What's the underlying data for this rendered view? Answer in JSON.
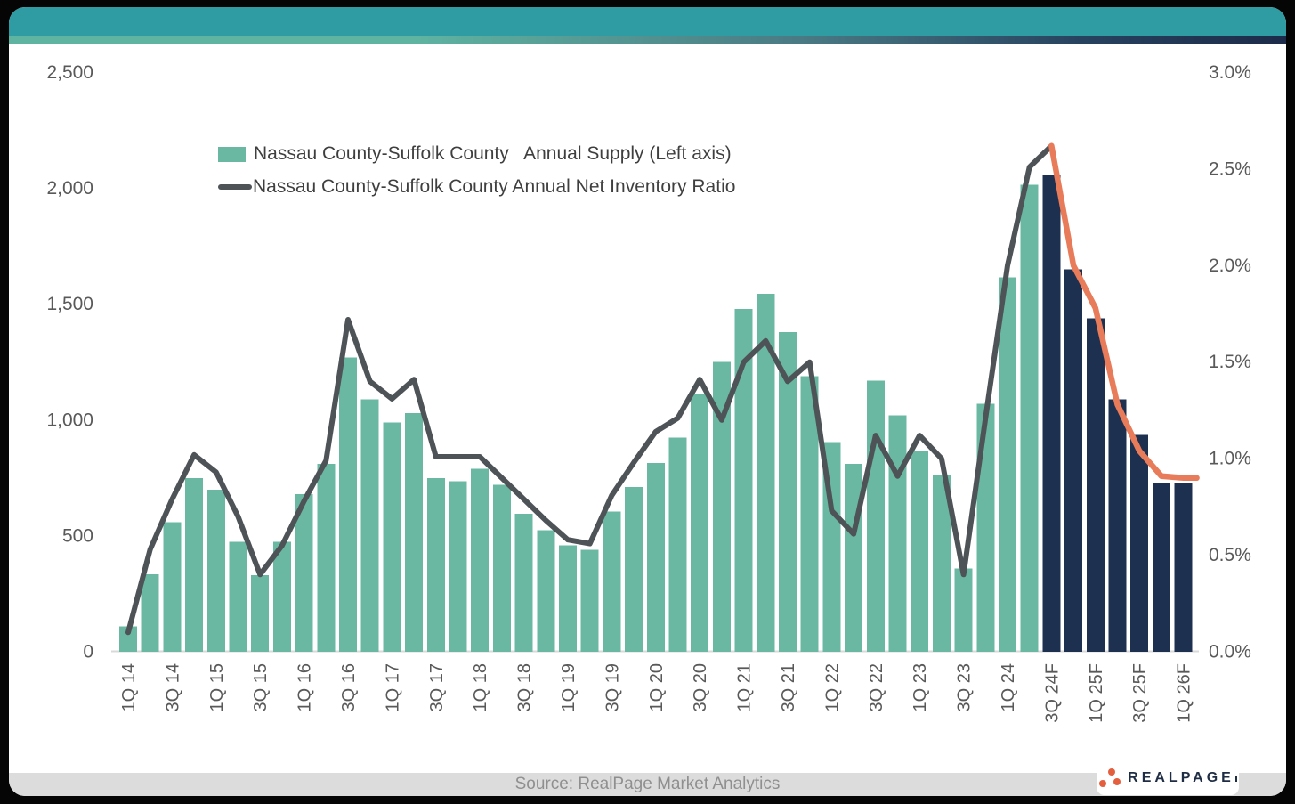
{
  "header": {
    "teal_color": "#2f9ba3",
    "gradient_left_color": "#5fb3a1",
    "gradient_right_color": "#1c2b49"
  },
  "legend": {
    "supply_label": "Nassau County-Suffolk County   Annual Supply (Left axis)",
    "ratio_label": "Nassau County-Suffolk County Annual Net Inventory Ratio"
  },
  "footer": {
    "source_text": "Source: RealPage Market Analytics",
    "logo_text": "REALPAGE"
  },
  "colors": {
    "supply_historical": "#6bb8a2",
    "supply_forecast": "#1e3050",
    "ratio_historical": "#4e5357",
    "ratio_forecast": "#e87c5a",
    "axis_text": "#595959",
    "baseline": "#d9d9d9",
    "logo_dots": "#e45f3e"
  },
  "chart_data": {
    "type": "bar",
    "subtype": "bar-line-combo",
    "categories": [
      "1Q14",
      "2Q14",
      "3Q14",
      "4Q14",
      "1Q15",
      "2Q15",
      "3Q15",
      "4Q15",
      "1Q16",
      "2Q16",
      "3Q16",
      "4Q16",
      "1Q17",
      "2Q17",
      "3Q17",
      "4Q17",
      "1Q18",
      "2Q18",
      "3Q18",
      "4Q18",
      "1Q19",
      "2Q19",
      "3Q19",
      "4Q19",
      "1Q20",
      "2Q20",
      "3Q20",
      "4Q20",
      "1Q21",
      "2Q21",
      "3Q21",
      "4Q21",
      "1Q22",
      "2Q22",
      "3Q22",
      "4Q22",
      "1Q23",
      "2Q23",
      "3Q23",
      "4Q23",
      "1Q24",
      "2Q24",
      "3Q24F",
      "4Q24F",
      "1Q25F",
      "2Q25F",
      "3Q25F",
      "4Q25F",
      "1Q26F"
    ],
    "x_tick_labels": [
      "1Q 14",
      "3Q 14",
      "1Q 15",
      "3Q 15",
      "1Q 16",
      "3Q 16",
      "1Q 17",
      "3Q 17",
      "1Q 18",
      "3Q 18",
      "1Q 19",
      "3Q 19",
      "1Q 20",
      "3Q 20",
      "1Q 21",
      "3Q 21",
      "1Q 22",
      "3Q 22",
      "1Q 23",
      "3Q 23",
      "1Q 24",
      "3Q 24F",
      "1Q 25F",
      "3Q 25F",
      "1Q 26F"
    ],
    "forecast_start_index": 42,
    "series": [
      {
        "name": "Nassau County-Suffolk County Annual Supply",
        "type": "bar",
        "axis": "left",
        "values": [
          110,
          335,
          560,
          750,
          700,
          475,
          330,
          475,
          680,
          810,
          1270,
          1090,
          990,
          1030,
          750,
          735,
          790,
          720,
          595,
          525,
          460,
          440,
          605,
          710,
          815,
          925,
          1110,
          1250,
          1480,
          1545,
          1380,
          1190,
          905,
          810,
          1170,
          1020,
          865,
          765,
          360,
          1070,
          1615,
          2015,
          2060,
          1650,
          1440,
          1090,
          935,
          730,
          730
        ]
      },
      {
        "name": "Nassau County-Suffolk County Annual Net Inventory Ratio",
        "type": "line",
        "axis": "right",
        "unit": "%",
        "values": [
          0.1,
          0.53,
          0.79,
          1.02,
          0.93,
          0.7,
          0.4,
          0.55,
          0.78,
          0.99,
          1.72,
          1.4,
          1.31,
          1.41,
          1.01,
          1.01,
          1.01,
          0.9,
          0.79,
          0.68,
          0.58,
          0.56,
          0.81,
          0.98,
          1.14,
          1.21,
          1.41,
          1.2,
          1.5,
          1.61,
          1.4,
          1.5,
          0.73,
          0.61,
          1.12,
          0.91,
          1.12,
          1.0,
          0.4,
          1.21,
          2.0,
          2.51,
          2.62,
          2.0,
          1.78,
          1.28,
          1.04,
          0.91,
          0.9
        ]
      }
    ],
    "left_axis": {
      "tick_labels": [
        "0",
        "500",
        "1,000",
        "1,500",
        "2,000",
        "2,500"
      ],
      "tick_values": [
        0,
        500,
        1000,
        1500,
        2000,
        2500
      ],
      "range": [
        0,
        2500
      ]
    },
    "right_axis": {
      "tick_labels": [
        "0.0%",
        "0.5%",
        "1.0%",
        "1.5%",
        "2.0%",
        "2.5%",
        "3.0%"
      ],
      "tick_values": [
        0,
        0.5,
        1.0,
        1.5,
        2.0,
        2.5,
        3.0
      ],
      "range": [
        0,
        3.0
      ]
    },
    "grid": false,
    "legend_position": "upper-left-inside"
  }
}
